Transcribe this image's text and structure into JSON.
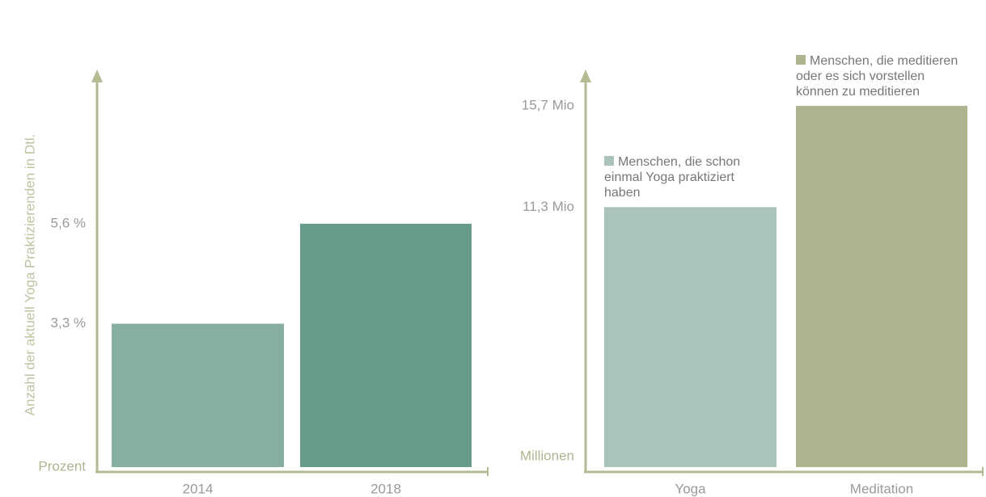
{
  "chart_data": [
    {
      "type": "bar",
      "ylabel": "Anzahl der aktuell Yoga Praktizierenden in Dtl.",
      "unit_label": "Prozent",
      "categories": [
        "2014",
        "2018"
      ],
      "values": [
        3.3,
        5.6
      ],
      "colors": [
        "#86afa0",
        "#669c89"
      ],
      "ylim": [
        0,
        9
      ],
      "yticks": [
        {
          "value": 3.3,
          "label": "3,3 %"
        },
        {
          "value": 5.6,
          "label": "5,6 %"
        }
      ]
    },
    {
      "type": "bar",
      "unit_label": "Millionen",
      "categories": [
        "Yoga",
        "Meditation"
      ],
      "values": [
        11.3,
        15.7
      ],
      "colors": [
        "#abc4b9",
        "#adb58f"
      ],
      "ylim": [
        0,
        17
      ],
      "yticks": [
        {
          "value": 11.3,
          "label": "11,3 Mio"
        },
        {
          "value": 15.7,
          "label": "15,7 Mio"
        }
      ],
      "annotations": [
        "Menschen, die schon einmal Yoga praktiziert haben",
        "Menschen, die meditieren oder es sich vorstellen können zu meditieren"
      ]
    }
  ]
}
